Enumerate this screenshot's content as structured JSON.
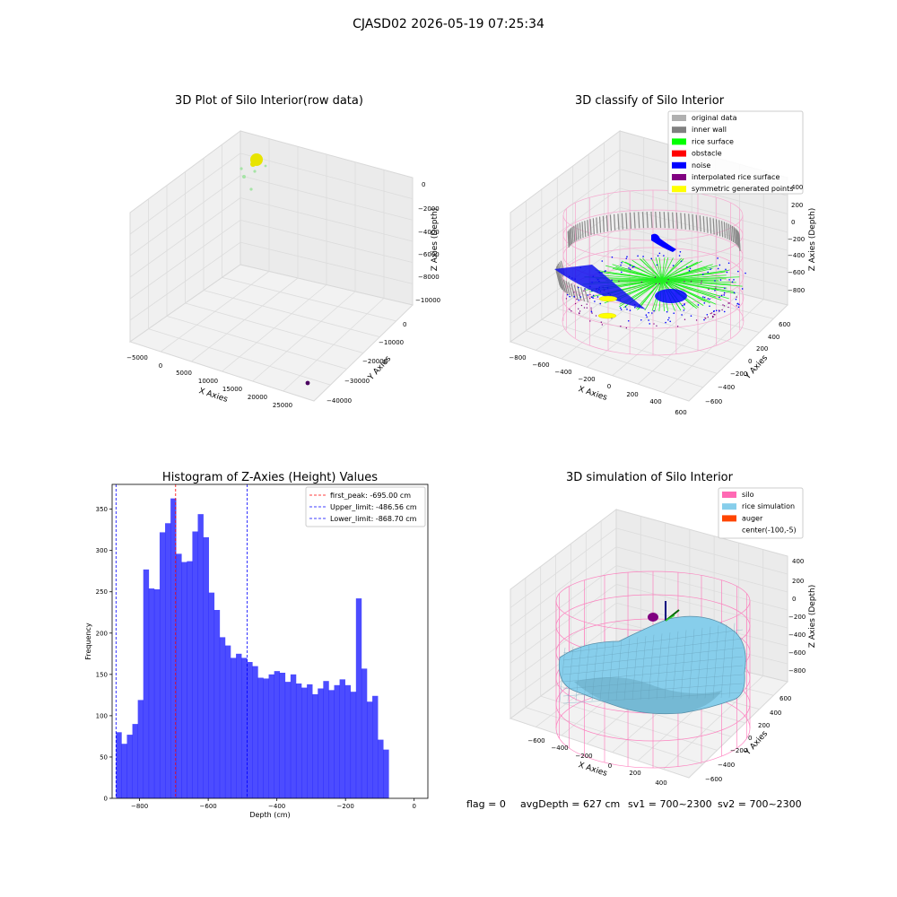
{
  "figure_title": "CJASD02 2026-05-19 07:25:34",
  "panels": {
    "raw": {
      "title": "3D Plot of Silo Interior(row data)",
      "xlabel": "X Axies",
      "ylabel": "Y Axies",
      "zlabel": "Z Axies (Depth)",
      "xticks": [
        "−5000",
        "0",
        "5000",
        "10000",
        "15000",
        "20000",
        "25000"
      ],
      "yticks": [
        "0",
        "−10000",
        "−20000",
        "−30000",
        "−40000"
      ],
      "zticks": [
        "0",
        "−2000",
        "−4000",
        "−6000",
        "−8000",
        "−10000"
      ]
    },
    "classify": {
      "title": "3D classify of Silo Interior",
      "xlabel": "X Axies",
      "ylabel": "Y Axies",
      "zlabel": "Z Axies (Depth)",
      "xticks": [
        "−800",
        "−600",
        "−400",
        "−200",
        "0",
        "200",
        "400",
        "600"
      ],
      "yticks": [
        "600",
        "400",
        "200",
        "0",
        "−200",
        "−400",
        "−600"
      ],
      "zticks": [
        "400",
        "200",
        "0",
        "−200",
        "−400",
        "−600",
        "−800"
      ],
      "legend": [
        {
          "label": "original data",
          "color": "#b0b0b0"
        },
        {
          "label": "inner wall",
          "color": "#808080"
        },
        {
          "label": "rice surface",
          "color": "#00ff00"
        },
        {
          "label": "obstacle",
          "color": "#ff0000"
        },
        {
          "label": "noise",
          "color": "#0000ff"
        },
        {
          "label": "interpolated rice surface",
          "color": "#800080"
        },
        {
          "label": "symmetric generated points",
          "color": "#ffff00"
        }
      ]
    },
    "simulation": {
      "title": "3D simulation of Silo Interior",
      "xlabel": "X Axies",
      "ylabel": "Y Axies",
      "zlabel": "Z Axies (Depth)",
      "xticks": [
        "−600",
        "−400",
        "−200",
        "0",
        "200",
        "400"
      ],
      "yticks": [
        "600",
        "400",
        "200",
        "0",
        "−200",
        "−400",
        "−600"
      ],
      "zticks": [
        "400",
        "200",
        "0",
        "−200",
        "−400",
        "−600",
        "−800"
      ],
      "legend": [
        {
          "label": "silo",
          "color": "#ff69b4"
        },
        {
          "label": "rice simulation",
          "color": "#87ceeb"
        },
        {
          "label": "auger",
          "color": "#ff4500"
        },
        {
          "label": "center(-100,-5)",
          "color": ""
        }
      ]
    }
  },
  "status_line": {
    "flag": "flag = 0",
    "avg_depth": "avgDepth = 627 cm",
    "sv1": "sv1 = 700~2300",
    "sv2": "sv2 = 700~2300"
  },
  "chart_data": {
    "type": "bar",
    "title": "Histogram of Z-Axies (Height) Values",
    "xlabel": "Depth (cm)",
    "ylabel": "Frequency",
    "xlim": [
      -880,
      40
    ],
    "ylim": [
      0,
      380
    ],
    "xticks": [
      -800,
      -600,
      -400,
      -200,
      0
    ],
    "yticks": [
      0,
      50,
      100,
      150,
      200,
      250,
      300,
      350
    ],
    "bar_color": "#0000ff",
    "bin_start": -868.7,
    "bin_width": 15.89,
    "values": [
      80,
      66,
      77,
      90,
      119,
      277,
      254,
      253,
      322,
      333,
      363,
      296,
      286,
      287,
      323,
      344,
      316,
      249,
      228,
      195,
      185,
      170,
      175,
      170,
      165,
      160,
      146,
      145,
      150,
      154,
      152,
      141,
      150,
      139,
      134,
      138,
      126,
      133,
      142,
      131,
      137,
      144,
      137,
      129,
      242,
      157,
      117,
      124,
      71,
      59
    ],
    "reference_lines": [
      {
        "label": "first_peak: -695.00 cm",
        "x": -695.0,
        "color": "#ff0000"
      },
      {
        "label": "Upper_limit: -486.56 cm",
        "x": -486.56,
        "color": "#0000ff"
      },
      {
        "label": "Lower_limit: -868.70 cm",
        "x": -868.7,
        "color": "#0000ff"
      }
    ]
  }
}
